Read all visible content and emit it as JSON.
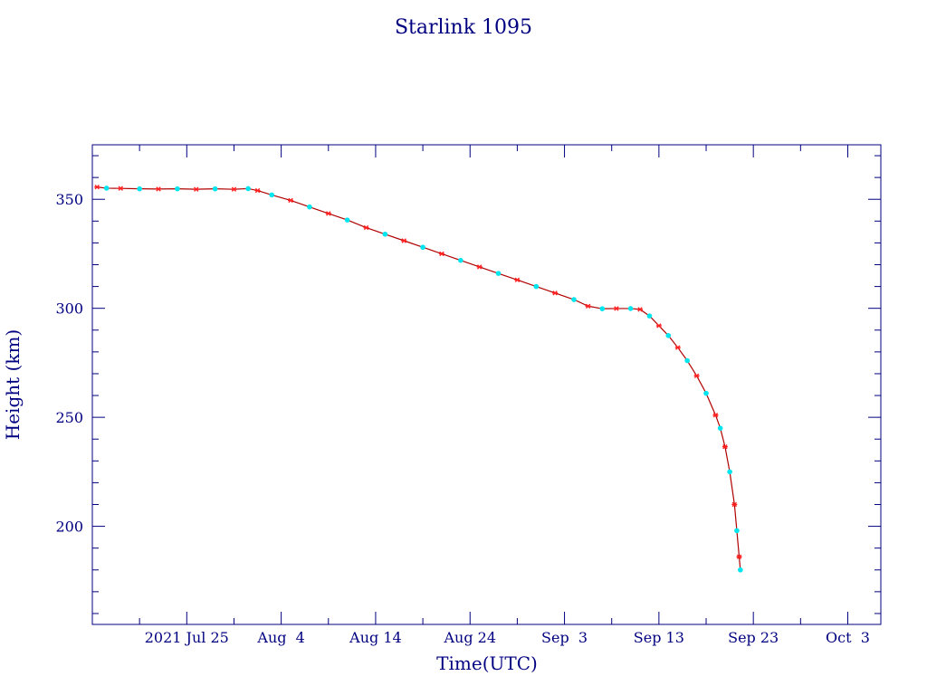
{
  "chart_data": {
    "type": "line",
    "title": "Starlink 1095",
    "xlabel": "Time(UTC)",
    "ylabel": "Height (km)",
    "x_range": [
      "2021-07-15T00:00",
      "2021-10-06T12:00"
    ],
    "ylim": [
      155,
      375
    ],
    "grid": false,
    "x_ticks": [
      {
        "date": "2021-07-25",
        "label": "2021 Jul 25"
      },
      {
        "date": "2021-08-04",
        "label": "Aug  4"
      },
      {
        "date": "2021-08-14",
        "label": "Aug 14"
      },
      {
        "date": "2021-08-24",
        "label": "Aug 24"
      },
      {
        "date": "2021-09-03",
        "label": "Sep  3"
      },
      {
        "date": "2021-09-13",
        "label": "Sep 13"
      },
      {
        "date": "2021-09-23",
        "label": "Sep 23"
      },
      {
        "date": "2021-10-03",
        "label": "Oct  3"
      }
    ],
    "y_ticks": [
      200,
      250,
      300,
      350
    ],
    "colors": {
      "axis": "#000080",
      "line": "#b00000",
      "marker_red": "#ff2020",
      "marker_cyan": "#00e5ee"
    },
    "series": [
      {
        "points": [
          [
            "2021-07-15T12:00",
            355.6
          ],
          [
            "2021-07-16T12:00",
            355.1
          ],
          [
            "2021-07-18T00:00",
            355.0
          ],
          [
            "2021-07-20T00:00",
            354.8
          ],
          [
            "2021-07-22T00:00",
            354.7
          ],
          [
            "2021-07-24T00:00",
            354.8
          ],
          [
            "2021-07-26T00:00",
            354.6
          ],
          [
            "2021-07-28T00:00",
            354.8
          ],
          [
            "2021-07-30T00:00",
            354.6
          ],
          [
            "2021-07-31T12:00",
            354.9
          ],
          [
            "2021-08-01T12:00",
            354.0
          ],
          [
            "2021-08-03T00:00",
            352.0
          ],
          [
            "2021-08-05T00:00",
            349.5
          ],
          [
            "2021-08-07T00:00",
            346.5
          ],
          [
            "2021-08-09T00:00",
            343.5
          ],
          [
            "2021-08-11T00:00",
            340.5
          ],
          [
            "2021-08-13T00:00",
            337.0
          ],
          [
            "2021-08-15T00:00",
            334.0
          ],
          [
            "2021-08-17T00:00",
            331.0
          ],
          [
            "2021-08-19T00:00",
            328.0
          ],
          [
            "2021-08-21T00:00",
            325.0
          ],
          [
            "2021-08-23T00:00",
            322.0
          ],
          [
            "2021-08-25T00:00",
            319.0
          ],
          [
            "2021-08-27T00:00",
            316.0
          ],
          [
            "2021-08-29T00:00",
            313.0
          ],
          [
            "2021-08-31T00:00",
            310.0
          ],
          [
            "2021-09-02T00:00",
            307.0
          ],
          [
            "2021-09-04T00:00",
            304.0
          ],
          [
            "2021-09-05T12:00",
            301.0
          ],
          [
            "2021-09-07T00:00",
            299.8
          ],
          [
            "2021-09-08T12:00",
            299.9
          ],
          [
            "2021-09-10T00:00",
            299.9
          ],
          [
            "2021-09-11T00:00",
            299.5
          ],
          [
            "2021-09-12T00:00",
            296.5
          ],
          [
            "2021-09-13T00:00",
            292.0
          ],
          [
            "2021-09-14T00:00",
            287.5
          ],
          [
            "2021-09-15T00:00",
            282.0
          ],
          [
            "2021-09-16T00:00",
            276.0
          ],
          [
            "2021-09-17T00:00",
            269.0
          ],
          [
            "2021-09-18T00:00",
            261.0
          ],
          [
            "2021-09-19T00:00",
            251.0
          ],
          [
            "2021-09-19T12:00",
            245.0
          ],
          [
            "2021-09-20T00:00",
            236.5
          ],
          [
            "2021-09-20T12:00",
            225.0
          ],
          [
            "2021-09-21T00:00",
            210.0
          ],
          [
            "2021-09-21T06:00",
            198.0
          ],
          [
            "2021-09-21T12:00",
            186.0
          ],
          [
            "2021-09-21T15:00",
            180.0
          ]
        ]
      }
    ]
  }
}
